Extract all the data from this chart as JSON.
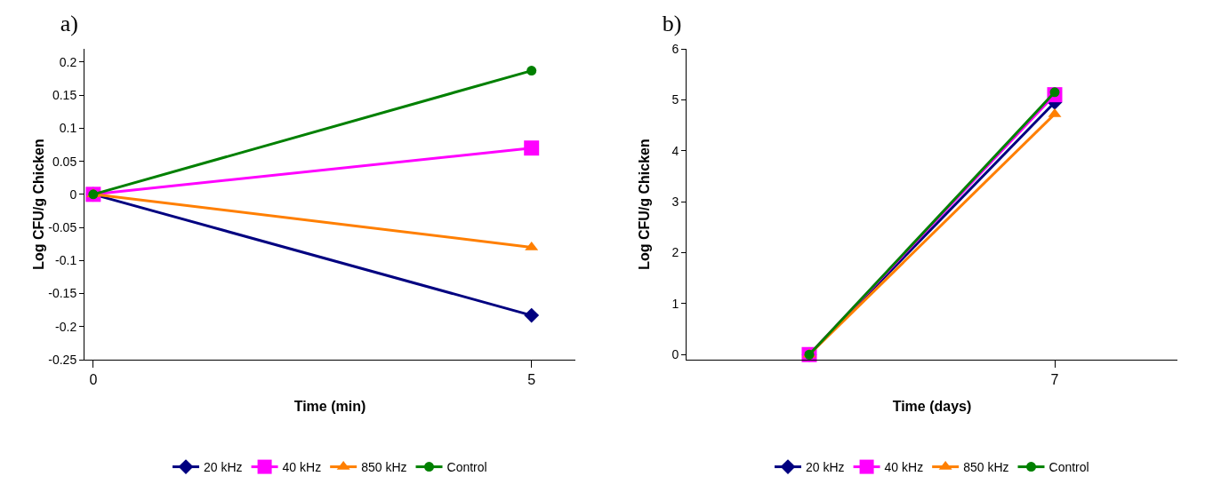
{
  "chart_data": [
    {
      "type": "line",
      "title": "a)",
      "xlabel": "Time (min)",
      "ylabel": "Log CFU/g Chicken",
      "x": [
        0,
        5
      ],
      "xlim": [
        -0.1,
        5.5
      ],
      "xticks": [
        0,
        5
      ],
      "ylim": [
        -0.25,
        0.22
      ],
      "yticks": [
        -0.25,
        -0.2,
        -0.15,
        -0.1,
        -0.05,
        0,
        0.05,
        0.1,
        0.15,
        0.2
      ],
      "grid": false,
      "legend": "bottom",
      "series": [
        {
          "name": "20 kHz",
          "color": "#000080",
          "marker": "diamond",
          "values": [
            0,
            -0.183
          ]
        },
        {
          "name": "40 kHz",
          "color": "#ff00ff",
          "marker": "square",
          "values": [
            0,
            0.07
          ]
        },
        {
          "name": "850 kHz",
          "color": "#ff7f00",
          "marker": "triangle",
          "values": [
            0,
            -0.08
          ]
        },
        {
          "name": "Control",
          "color": "#008000",
          "marker": "circle",
          "values": [
            0,
            0.187
          ]
        }
      ]
    },
    {
      "type": "line",
      "title": "b)",
      "xlabel": "Time (days)",
      "ylabel": "Log CFU/g Chicken",
      "categories": [
        null,
        "7"
      ],
      "ylim": [
        -0.1,
        6
      ],
      "yticks": [
        0,
        1,
        2,
        3,
        4,
        5,
        6
      ],
      "grid": false,
      "legend": "bottom",
      "series": [
        {
          "name": "20 kHz",
          "color": "#000080",
          "marker": "diamond",
          "values": [
            0,
            4.95
          ]
        },
        {
          "name": "40 kHz",
          "color": "#ff00ff",
          "marker": "square",
          "values": [
            0,
            5.1
          ]
        },
        {
          "name": "850 kHz",
          "color": "#ff7f00",
          "marker": "triangle",
          "values": [
            0,
            4.72
          ]
        },
        {
          "name": "Control",
          "color": "#008000",
          "marker": "circle",
          "values": [
            0,
            5.15
          ]
        }
      ]
    }
  ]
}
